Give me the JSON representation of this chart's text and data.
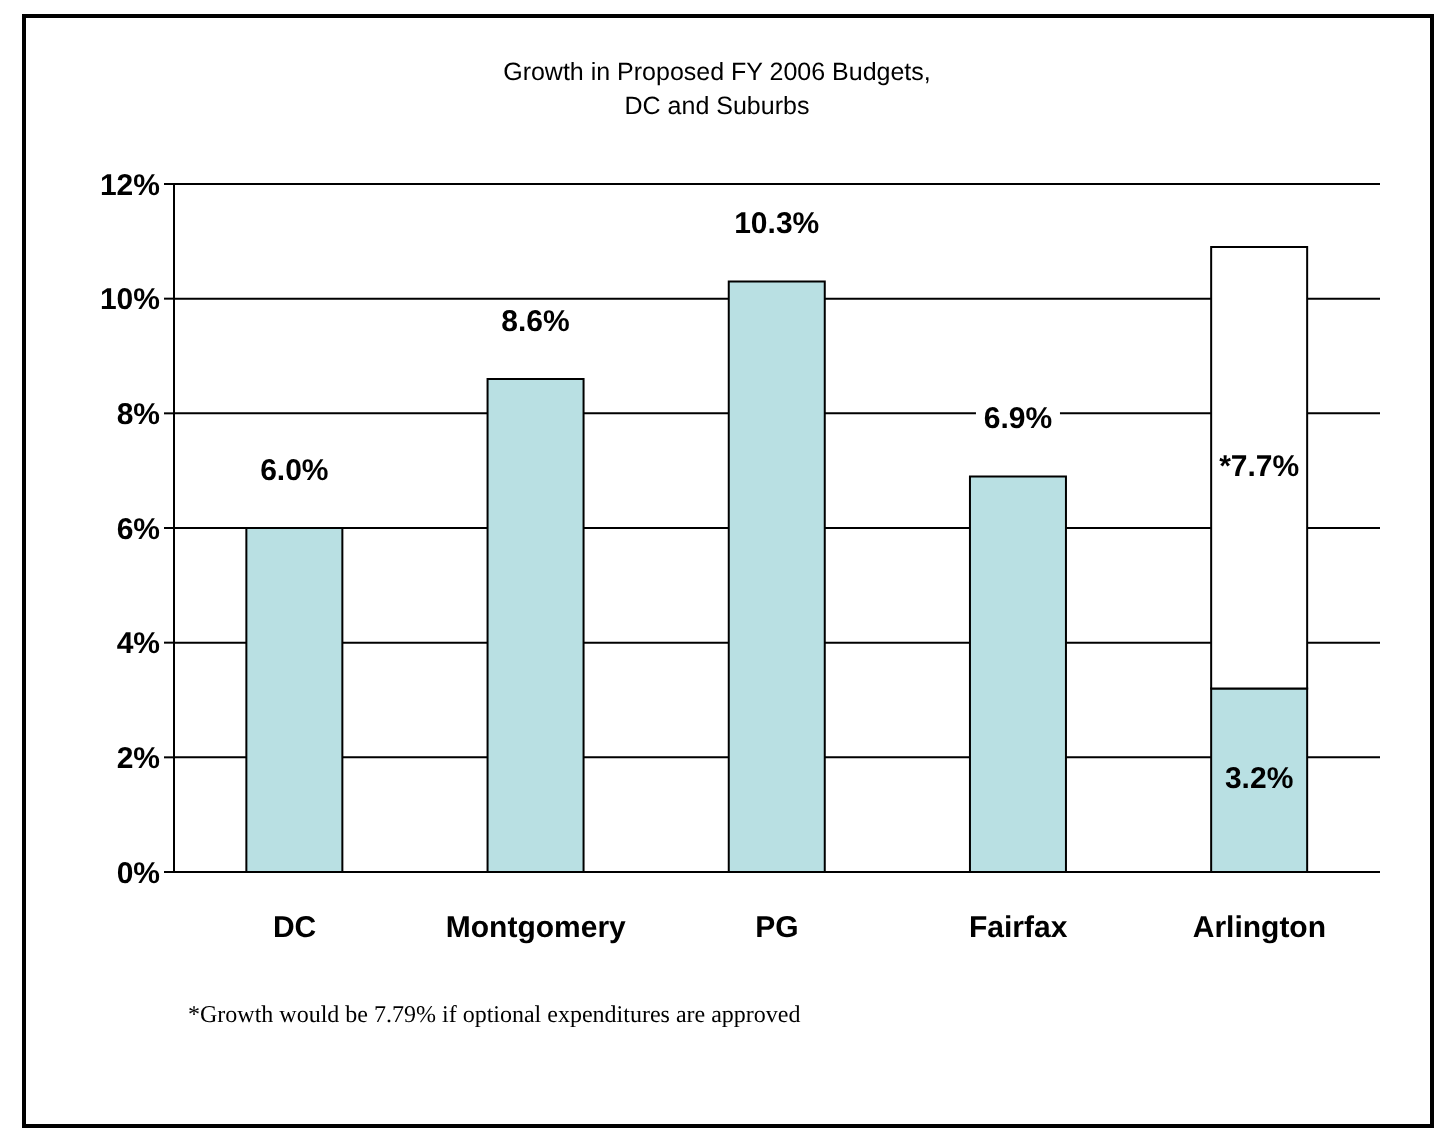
{
  "chart_data": {
    "type": "bar",
    "title": "Growth in Proposed FY 2006 Budgets,\nDC and Suburbs",
    "categories": [
      "DC",
      "Montgomery",
      "PG",
      "Fairfax",
      "Arlington"
    ],
    "stacked": true,
    "series": [
      {
        "color": "#b9e0e3",
        "values": [
          6.0,
          8.6,
          10.3,
          6.9,
          3.2
        ],
        "value_labels": [
          "6.0%",
          "8.6%",
          "10.3%",
          "6.9%",
          "3.2%"
        ]
      },
      {
        "color": "#ffffff",
        "values": [
          null,
          null,
          null,
          null,
          7.7
        ],
        "value_labels": [
          null,
          null,
          null,
          null,
          "*7.7%"
        ]
      }
    ],
    "ylim": [
      0,
      12
    ],
    "yticks": [
      {
        "value": 0,
        "label": "0%"
      },
      {
        "value": 2,
        "label": "2%"
      },
      {
        "value": 4,
        "label": "4%"
      },
      {
        "value": 6,
        "label": "6%"
      },
      {
        "value": 8,
        "label": "8%"
      },
      {
        "value": 10,
        "label": "10%"
      },
      {
        "value": 12,
        "label": "12%"
      }
    ],
    "grid": "y",
    "annotations": [
      "*Growth would be 7.79% if optional expenditures are approved"
    ]
  }
}
